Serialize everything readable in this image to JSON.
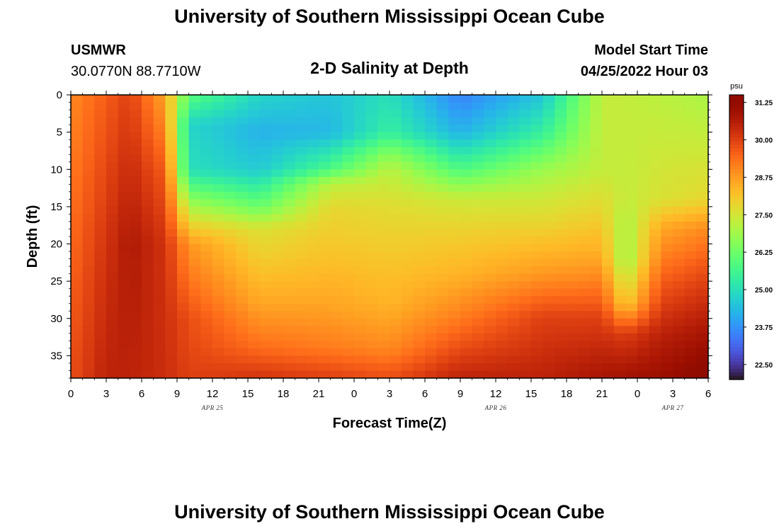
{
  "page": {
    "title": "University of Southern Mississippi Ocean Cube",
    "title_repeat": "University of Southern Mississippi Ocean Cube",
    "station_id": "USMWR",
    "station_coords": "30.0770N  88.7710W",
    "subtitle": "2-D Salinity at Depth",
    "model_label": "Model Start Time",
    "model_time": "04/25/2022 Hour 03"
  },
  "chart_data": {
    "type": "heatmap",
    "title": "2-D Salinity at Depth",
    "xlabel": "Forecast Time(Z)",
    "ylabel": "Depth (ft)",
    "x_ticks": [
      "0",
      "3",
      "6",
      "9",
      "12",
      "15",
      "18",
      "21",
      "0",
      "3",
      "6",
      "9",
      "12",
      "15",
      "18",
      "21",
      "0",
      "3",
      "6"
    ],
    "x_dates": [
      {
        "label": "APR 25",
        "tick_index": 4
      },
      {
        "label": "APR 26",
        "tick_index": 12
      },
      {
        "label": "APR 27",
        "tick_index": 17
      }
    ],
    "x_range_hours": [
      0,
      54
    ],
    "y_ticks": [
      0,
      5,
      10,
      15,
      20,
      25,
      30,
      35
    ],
    "y_range": [
      0,
      38
    ],
    "y_inverted": true,
    "colorbar": {
      "unit": "psu",
      "ticks": [
        "31.25",
        "30.00",
        "28.75",
        "27.50",
        "26.25",
        "25.00",
        "23.75",
        "22.50"
      ],
      "range": [
        22.0,
        31.5
      ],
      "colormap": "turbo"
    },
    "cell_hours": 1,
    "cell_depth_ft": 1,
    "profile_hours": [
      0,
      3,
      5,
      8,
      10,
      16,
      22,
      27,
      33,
      40,
      45,
      47,
      50,
      54
    ],
    "profiles": [
      [
        [
          0,
          29.0
        ],
        [
          38,
          29.8
        ]
      ],
      [
        [
          0,
          29.6
        ],
        [
          20,
          30.2
        ],
        [
          38,
          30.5
        ]
      ],
      [
        [
          0,
          30.0
        ],
        [
          20,
          30.7
        ],
        [
          38,
          30.5
        ]
      ],
      [
        [
          0,
          28.6
        ],
        [
          10,
          29.6
        ],
        [
          20,
          30.2
        ],
        [
          38,
          30.3
        ]
      ],
      [
        [
          0,
          26.0
        ],
        [
          4,
          24.8
        ],
        [
          10,
          25.0
        ],
        [
          15,
          27.0
        ],
        [
          20,
          28.8
        ],
        [
          30,
          29.8
        ],
        [
          38,
          30.0
        ]
      ],
      [
        [
          0,
          24.8
        ],
        [
          5,
          24.2
        ],
        [
          10,
          24.6
        ],
        [
          15,
          26.2
        ],
        [
          18,
          27.6
        ],
        [
          22,
          28.0
        ],
        [
          28,
          28.6
        ],
        [
          34,
          29.4
        ],
        [
          38,
          30.2
        ]
      ],
      [
        [
          0,
          24.5
        ],
        [
          5,
          24.3
        ],
        [
          10,
          25.8
        ],
        [
          12,
          27.2
        ],
        [
          15,
          27.8
        ],
        [
          22,
          28.2
        ],
        [
          28,
          28.6
        ],
        [
          34,
          29.2
        ],
        [
          38,
          30.0
        ]
      ],
      [
        [
          0,
          25.0
        ],
        [
          5,
          25.4
        ],
        [
          8,
          26.6
        ],
        [
          10,
          27.2
        ],
        [
          15,
          27.7
        ],
        [
          22,
          28.1
        ],
        [
          28,
          28.4
        ],
        [
          34,
          29.0
        ],
        [
          38,
          29.8
        ]
      ],
      [
        [
          0,
          23.5
        ],
        [
          5,
          24.2
        ],
        [
          10,
          25.8
        ],
        [
          14,
          27.4
        ],
        [
          18,
          27.9
        ],
        [
          24,
          28.4
        ],
        [
          30,
          29.2
        ],
        [
          35,
          30.0
        ],
        [
          38,
          30.5
        ]
      ],
      [
        [
          0,
          24.5
        ],
        [
          5,
          25.4
        ],
        [
          10,
          26.8
        ],
        [
          13,
          27.3
        ],
        [
          17,
          27.8
        ],
        [
          24,
          28.8
        ],
        [
          30,
          30.0
        ],
        [
          38,
          30.5
        ]
      ],
      [
        [
          0,
          27.3
        ],
        [
          10,
          27.3
        ],
        [
          15,
          27.8
        ],
        [
          22,
          28.6
        ],
        [
          30,
          30.0
        ],
        [
          38,
          30.8
        ]
      ],
      [
        [
          0,
          27.3
        ],
        [
          14,
          27.3
        ],
        [
          17,
          27.0
        ],
        [
          22,
          26.8
        ],
        [
          28,
          28.0
        ],
        [
          32,
          30.0
        ],
        [
          38,
          30.9
        ]
      ],
      [
        [
          0,
          27.2
        ],
        [
          14,
          27.6
        ],
        [
          18,
          28.6
        ],
        [
          25,
          29.6
        ],
        [
          32,
          30.5
        ],
        [
          38,
          31.0
        ]
      ],
      [
        [
          0,
          27.0
        ],
        [
          14,
          27.8
        ],
        [
          18,
          29.0
        ],
        [
          25,
          30.0
        ],
        [
          32,
          30.8
        ],
        [
          38,
          31.5
        ]
      ]
    ]
  }
}
